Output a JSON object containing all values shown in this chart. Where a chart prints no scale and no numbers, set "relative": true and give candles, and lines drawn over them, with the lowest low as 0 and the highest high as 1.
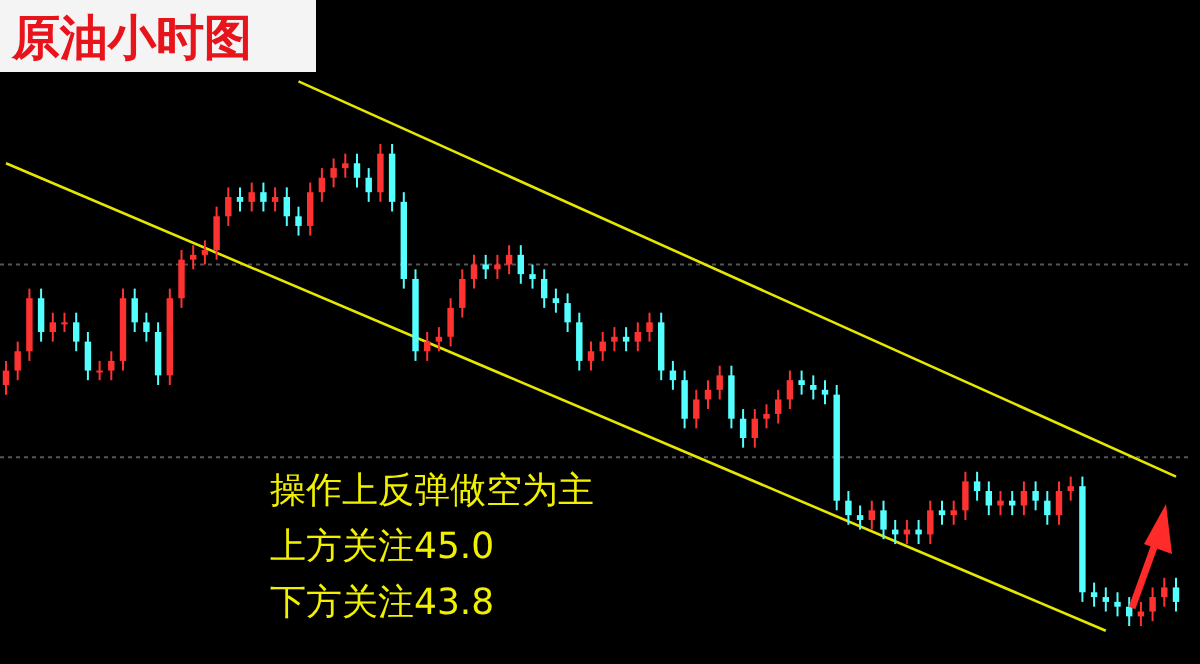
{
  "chart_data": {
    "type": "candlestick",
    "title": "原油小时图",
    "relative": true,
    "categories": [
      null,
      null,
      null,
      null,
      null,
      null,
      null,
      null,
      null,
      null,
      null,
      null,
      null,
      null,
      null,
      null,
      null,
      null,
      null,
      null,
      null,
      null,
      null,
      null,
      null,
      null,
      null,
      null,
      null,
      null,
      null,
      null,
      null,
      null,
      null,
      null,
      null,
      null,
      null,
      null,
      null,
      null,
      null,
      null,
      null,
      null,
      null,
      null,
      null,
      null,
      null,
      null,
      null,
      null,
      null,
      null,
      null,
      null,
      null,
      null,
      null,
      null,
      null,
      null,
      null,
      null,
      null,
      null,
      null,
      null,
      null,
      null,
      null,
      null,
      null,
      null,
      null,
      null,
      null,
      null,
      null,
      null,
      null,
      null,
      null,
      null,
      null,
      null,
      null,
      null,
      null,
      null,
      null,
      null,
      null,
      null,
      null,
      null,
      null,
      null,
      null
    ],
    "colors": [
      "#ff3232",
      "#ff3232",
      "#ff3232",
      "#54ffff",
      "#ff3232",
      "#ff3232",
      "#54ffff",
      "#54ffff",
      "#ff3232",
      "#ff3232",
      "#ff3232",
      "#54ffff",
      "#54ffff",
      "#54ffff",
      "#ff3232",
      "#ff3232",
      "#ff3232",
      "#ff3232",
      "#ff3232",
      "#ff3232",
      "#54ffff",
      "#ff3232",
      "#54ffff",
      "#ff3232",
      "#54ffff",
      "#54ffff",
      "#ff3232",
      "#ff3232",
      "#ff3232",
      "#ff3232",
      "#54ffff",
      "#54ffff",
      "#ff3232",
      "#54ffff",
      "#54ffff",
      "#54ffff",
      "#ff3232",
      "#ff3232",
      "#ff3232",
      "#ff3232",
      "#ff3232",
      "#54ffff",
      "#ff3232",
      "#ff3232",
      "#54ffff",
      "#54ffff",
      "#54ffff",
      "#54ffff",
      "#54ffff",
      "#54ffff",
      "#ff3232",
      "#ff3232",
      "#ff3232",
      "#54ffff",
      "#ff3232",
      "#ff3232",
      "#54ffff",
      "#54ffff",
      "#54ffff",
      "#ff3232",
      "#ff3232",
      "#ff3232",
      "#54ffff",
      "#54ffff",
      "#ff3232",
      "#ff3232",
      "#ff3232",
      "#ff3232",
      "#54ffff",
      "#54ffff",
      "#54ffff",
      "#54ffff",
      "#54ffff",
      "#54ffff",
      "#ff3232",
      "#54ffff",
      "#54ffff",
      "#ff3232",
      "#54ffff",
      "#ff3232",
      "#54ffff",
      "#ff3232",
      "#ff3232",
      "#54ffff",
      "#54ffff",
      "#ff3232",
      "#54ffff",
      "#ff3232",
      "#54ffff",
      "#54ffff",
      "#ff3232",
      "#ff3232",
      "#54ffff",
      "#54ffff",
      "#54ffff",
      "#54ffff",
      "#54ffff",
      "#ff3232",
      "#ff3232",
      "#ff3232",
      "#54ffff"
    ],
    "ohlc": [
      [
        0.5,
        0.55,
        0.48,
        0.53
      ],
      [
        0.53,
        0.59,
        0.51,
        0.57
      ],
      [
        0.57,
        0.7,
        0.55,
        0.68
      ],
      [
        0.68,
        0.7,
        0.59,
        0.61
      ],
      [
        0.61,
        0.65,
        0.59,
        0.63
      ],
      [
        0.63,
        0.65,
        0.61,
        0.63
      ],
      [
        0.63,
        0.65,
        0.57,
        0.59
      ],
      [
        0.59,
        0.61,
        0.51,
        0.53
      ],
      [
        0.53,
        0.55,
        0.51,
        0.53
      ],
      [
        0.53,
        0.57,
        0.51,
        0.55
      ],
      [
        0.55,
        0.7,
        0.53,
        0.68
      ],
      [
        0.68,
        0.7,
        0.61,
        0.63
      ],
      [
        0.63,
        0.65,
        0.59,
        0.61
      ],
      [
        0.61,
        0.63,
        0.5,
        0.52
      ],
      [
        0.52,
        0.7,
        0.5,
        0.68
      ],
      [
        0.68,
        0.78,
        0.66,
        0.76
      ],
      [
        0.76,
        0.79,
        0.74,
        0.77
      ],
      [
        0.77,
        0.8,
        0.75,
        0.78
      ],
      [
        0.78,
        0.87,
        0.76,
        0.85
      ],
      [
        0.85,
        0.91,
        0.83,
        0.89
      ],
      [
        0.89,
        0.91,
        0.86,
        0.88
      ],
      [
        0.88,
        0.92,
        0.86,
        0.9
      ],
      [
        0.9,
        0.92,
        0.86,
        0.88
      ],
      [
        0.88,
        0.91,
        0.86,
        0.89
      ],
      [
        0.89,
        0.91,
        0.83,
        0.85
      ],
      [
        0.85,
        0.87,
        0.81,
        0.83
      ],
      [
        0.83,
        0.92,
        0.81,
        0.9
      ],
      [
        0.9,
        0.95,
        0.88,
        0.93
      ],
      [
        0.93,
        0.97,
        0.91,
        0.95
      ],
      [
        0.95,
        0.98,
        0.93,
        0.96
      ],
      [
        0.96,
        0.98,
        0.91,
        0.93
      ],
      [
        0.93,
        0.95,
        0.88,
        0.9
      ],
      [
        0.9,
        1.0,
        0.88,
        0.98
      ],
      [
        0.98,
        1.0,
        0.86,
        0.88
      ],
      [
        0.88,
        0.9,
        0.7,
        0.72
      ],
      [
        0.72,
        0.74,
        0.55,
        0.57
      ],
      [
        0.57,
        0.61,
        0.55,
        0.59
      ],
      [
        0.59,
        0.62,
        0.57,
        0.6
      ],
      [
        0.6,
        0.68,
        0.58,
        0.66
      ],
      [
        0.66,
        0.74,
        0.64,
        0.72
      ],
      [
        0.72,
        0.77,
        0.7,
        0.75
      ],
      [
        0.75,
        0.77,
        0.72,
        0.74
      ],
      [
        0.74,
        0.77,
        0.72,
        0.75
      ],
      [
        0.75,
        0.79,
        0.73,
        0.77
      ],
      [
        0.77,
        0.79,
        0.71,
        0.73
      ],
      [
        0.73,
        0.75,
        0.7,
        0.72
      ],
      [
        0.72,
        0.74,
        0.66,
        0.68
      ],
      [
        0.68,
        0.7,
        0.65,
        0.67
      ],
      [
        0.67,
        0.69,
        0.61,
        0.63
      ],
      [
        0.63,
        0.65,
        0.53,
        0.55
      ],
      [
        0.55,
        0.59,
        0.53,
        0.57
      ],
      [
        0.57,
        0.61,
        0.55,
        0.59
      ],
      [
        0.59,
        0.62,
        0.57,
        0.6
      ],
      [
        0.6,
        0.62,
        0.57,
        0.59
      ],
      [
        0.59,
        0.63,
        0.57,
        0.61
      ],
      [
        0.61,
        0.65,
        0.59,
        0.63
      ],
      [
        0.63,
        0.65,
        0.51,
        0.53
      ],
      [
        0.53,
        0.55,
        0.49,
        0.51
      ],
      [
        0.51,
        0.53,
        0.41,
        0.43
      ],
      [
        0.43,
        0.49,
        0.41,
        0.47
      ],
      [
        0.47,
        0.51,
        0.45,
        0.49
      ],
      [
        0.49,
        0.54,
        0.47,
        0.52
      ],
      [
        0.52,
        0.54,
        0.41,
        0.43
      ],
      [
        0.43,
        0.45,
        0.37,
        0.39
      ],
      [
        0.39,
        0.45,
        0.37,
        0.43
      ],
      [
        0.43,
        0.46,
        0.41,
        0.44
      ],
      [
        0.44,
        0.49,
        0.42,
        0.47
      ],
      [
        0.47,
        0.53,
        0.45,
        0.51
      ],
      [
        0.51,
        0.53,
        0.48,
        0.5
      ],
      [
        0.5,
        0.52,
        0.47,
        0.49
      ],
      [
        0.49,
        0.51,
        0.46,
        0.48
      ],
      [
        0.48,
        0.5,
        0.24,
        0.26
      ],
      [
        0.26,
        0.28,
        0.21,
        0.23
      ],
      [
        0.23,
        0.25,
        0.2,
        0.22
      ],
      [
        0.22,
        0.26,
        0.2,
        0.24
      ],
      [
        0.24,
        0.26,
        0.18,
        0.2
      ],
      [
        0.2,
        0.22,
        0.17,
        0.19
      ],
      [
        0.19,
        0.22,
        0.17,
        0.2
      ],
      [
        0.2,
        0.22,
        0.17,
        0.19
      ],
      [
        0.19,
        0.26,
        0.17,
        0.24
      ],
      [
        0.24,
        0.26,
        0.21,
        0.23
      ],
      [
        0.23,
        0.26,
        0.21,
        0.24
      ],
      [
        0.24,
        0.32,
        0.22,
        0.3
      ],
      [
        0.3,
        0.32,
        0.26,
        0.28
      ],
      [
        0.28,
        0.3,
        0.23,
        0.25
      ],
      [
        0.25,
        0.28,
        0.23,
        0.26
      ],
      [
        0.26,
        0.28,
        0.23,
        0.25
      ],
      [
        0.25,
        0.3,
        0.23,
        0.28
      ],
      [
        0.28,
        0.3,
        0.24,
        0.26
      ],
      [
        0.26,
        0.28,
        0.21,
        0.23
      ],
      [
        0.23,
        0.3,
        0.21,
        0.28
      ],
      [
        0.28,
        0.31,
        0.26,
        0.29
      ],
      [
        0.29,
        0.31,
        0.05,
        0.07
      ],
      [
        0.07,
        0.09,
        0.04,
        0.06
      ],
      [
        0.06,
        0.08,
        0.03,
        0.05
      ],
      [
        0.05,
        0.07,
        0.02,
        0.04
      ],
      [
        0.04,
        0.06,
        0.0,
        0.02
      ],
      [
        0.02,
        0.05,
        0.0,
        0.03
      ],
      [
        0.03,
        0.08,
        0.01,
        0.06
      ],
      [
        0.06,
        0.1,
        0.04,
        0.08
      ],
      [
        0.08,
        0.1,
        0.03,
        0.05
      ]
    ],
    "series": [
      {
        "type": "line",
        "color": "#e6e600",
        "values": [
          null,
          null,
          null,
          null,
          null,
          null,
          null,
          null,
          null,
          null,
          null,
          null,
          null,
          null,
          null,
          null,
          null,
          null,
          null,
          null,
          null,
          null,
          null,
          null,
          null,
          1.13,
          null,
          null,
          null,
          null,
          null,
          null,
          null,
          null,
          null,
          null,
          null,
          null,
          null,
          null,
          null,
          null,
          null,
          null,
          null,
          null,
          null,
          null,
          null,
          null,
          null,
          null,
          null,
          null,
          null,
          null,
          null,
          null,
          null,
          null,
          null,
          null,
          null,
          null,
          null,
          null,
          null,
          null,
          null,
          null,
          null,
          null,
          null,
          null,
          null,
          null,
          null,
          null,
          null,
          null,
          null,
          null,
          null,
          null,
          null,
          null,
          null,
          null,
          null,
          null,
          null,
          null,
          null,
          null,
          null,
          null,
          null,
          null,
          null,
          null,
          0.31
        ]
      },
      {
        "type": "line",
        "color": "#e6e600",
        "values": [
          0.96,
          null,
          null,
          null,
          null,
          null,
          null,
          null,
          null,
          null,
          null,
          null,
          null,
          null,
          null,
          null,
          null,
          null,
          null,
          null,
          null,
          null,
          null,
          null,
          null,
          null,
          null,
          null,
          null,
          null,
          null,
          null,
          null,
          null,
          null,
          null,
          null,
          null,
          null,
          null,
          null,
          null,
          null,
          null,
          null,
          null,
          null,
          null,
          null,
          null,
          null,
          null,
          null,
          null,
          null,
          null,
          null,
          null,
          null,
          null,
          null,
          null,
          null,
          null,
          null,
          null,
          null,
          null,
          null,
          null,
          null,
          null,
          null,
          null,
          null,
          null,
          null,
          null,
          null,
          null,
          null,
          null,
          null,
          null,
          null,
          null,
          null,
          null,
          null,
          null,
          null,
          null,
          null,
          null,
          -0.01,
          null,
          null,
          null,
          null,
          null,
          null
        ]
      }
    ],
    "ref_lines": [
      {
        "axis": "y",
        "value": 0.75,
        "color": "#555555",
        "line_style": "dotted"
      },
      {
        "axis": "y",
        "value": 0.35,
        "color": "#555555",
        "line_style": "dotted"
      }
    ],
    "annotations": [
      "操作上反弹做空为主",
      "上方关注45.0",
      "下方关注43.8"
    ]
  }
}
